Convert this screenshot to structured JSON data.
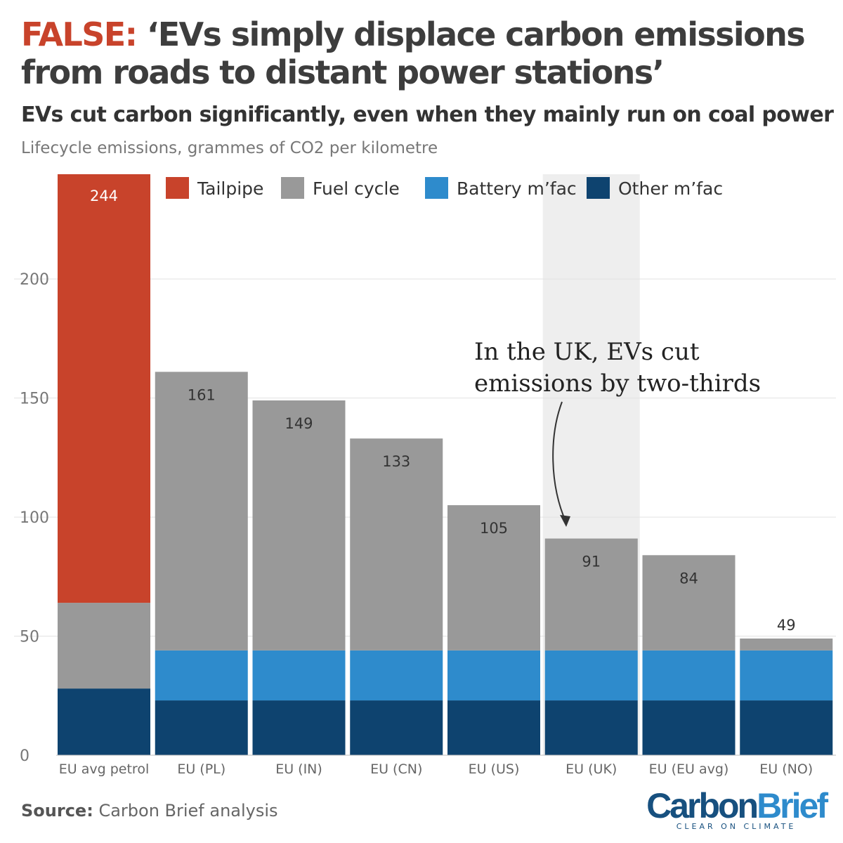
{
  "header": {
    "title_prefix": "FALSE:",
    "title_text": "‘EVs simply displace carbon emissions from roads to distant power stations’",
    "subtitle": "EVs cut carbon significantly, even when they mainly run on coal power",
    "unit_label": "Lifecycle emissions, grammes of CO2 per kilometre"
  },
  "footer": {
    "source_label": "Source:",
    "source_text": "Carbon Brief analysis"
  },
  "brand": {
    "name_part1": "Carbon",
    "name_part2": "Brief",
    "tagline": "CLEAR ON CLIMATE"
  },
  "colors": {
    "tailpipe": "#c8432b",
    "fuel_cycle": "#999999",
    "battery": "#2e8bcc",
    "other": "#0e436f",
    "highlight": "#eeeeee",
    "title_accent": "#c8432b"
  },
  "chart_data": {
    "type": "bar",
    "stacked": true,
    "categories": [
      "EU avg petrol",
      "EU (PL)",
      "EU (IN)",
      "EU (CN)",
      "EU (US)",
      "EU (UK)",
      "EU (EU avg)",
      "EU (NO)"
    ],
    "series": [
      {
        "name": "Other m’fac",
        "color": "#0e436f",
        "values": [
          28,
          23,
          23,
          23,
          23,
          23,
          23,
          23
        ]
      },
      {
        "name": "Battery m’fac",
        "color": "#2e8bcc",
        "values": [
          0,
          21,
          21,
          21,
          21,
          21,
          21,
          21
        ]
      },
      {
        "name": "Fuel cycle",
        "color": "#999999",
        "values": [
          36,
          117,
          105,
          89,
          61,
          47,
          40,
          5
        ]
      },
      {
        "name": "Tailpipe",
        "color": "#c8432b",
        "values": [
          180,
          0,
          0,
          0,
          0,
          0,
          0,
          0
        ]
      }
    ],
    "totals": [
      244,
      161,
      149,
      133,
      105,
      91,
      84,
      49
    ],
    "legend_order": [
      "Tailpipe",
      "Fuel cycle",
      "Battery m’fac",
      "Other m’fac"
    ],
    "legend_position": "top",
    "y_ticks": [
      0,
      50,
      100,
      150,
      200
    ],
    "ylim": [
      0,
      244
    ],
    "grid": true,
    "highlight_category": "EU (UK)",
    "annotation": {
      "lines": [
        "In the UK, EVs cut",
        "emissions by two-thirds"
      ],
      "target": "EU (UK)"
    }
  }
}
